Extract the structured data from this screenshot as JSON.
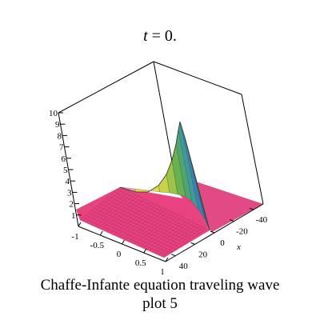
{
  "title": {
    "var": "t",
    "rest": " = 0."
  },
  "caption": {
    "line1": "Chaffe-Infante equation  traveling wave",
    "line2": "plot 5"
  },
  "chart_data": {
    "type": "surface3d",
    "title": "t = 0.",
    "xlabel": "x",
    "zlim": [
      0,
      10
    ],
    "z_ticks": [
      "1",
      "2",
      "3",
      "4",
      "5",
      "6",
      "7",
      "8",
      "9",
      "10"
    ],
    "y_ticks": [
      "-1",
      "-0.5",
      "0",
      "0.5",
      "1"
    ],
    "x_ticks": [
      "40",
      "20",
      "0",
      "-20",
      "-40"
    ],
    "x_range": [
      -50,
      50
    ],
    "y_range": [
      -1,
      1
    ],
    "surface": {
      "base_level": 1,
      "low_level": 0,
      "front_ridge": {
        "x": [
          -50,
          -30,
          -15,
          -5,
          0,
          5,
          10,
          15
        ],
        "z": [
          10,
          8.5,
          6,
          4,
          2.5,
          1.8,
          1.3,
          1.0
        ]
      },
      "crest": {
        "x": [
          15,
          10,
          0,
          -10,
          -20,
          -30,
          -40,
          -50
        ],
        "z": [
          1.0,
          1.2,
          1.6,
          2.2,
          3.0,
          4.2,
          6.0,
          9.6
        ]
      }
    },
    "colors": {
      "surface_base": "#e8437f",
      "grid": "#7a1f4a",
      "ridge_green": "#5fa83c",
      "ridge_yellow": "#f0d040",
      "ridge_blue": "#3a5fa0"
    }
  }
}
